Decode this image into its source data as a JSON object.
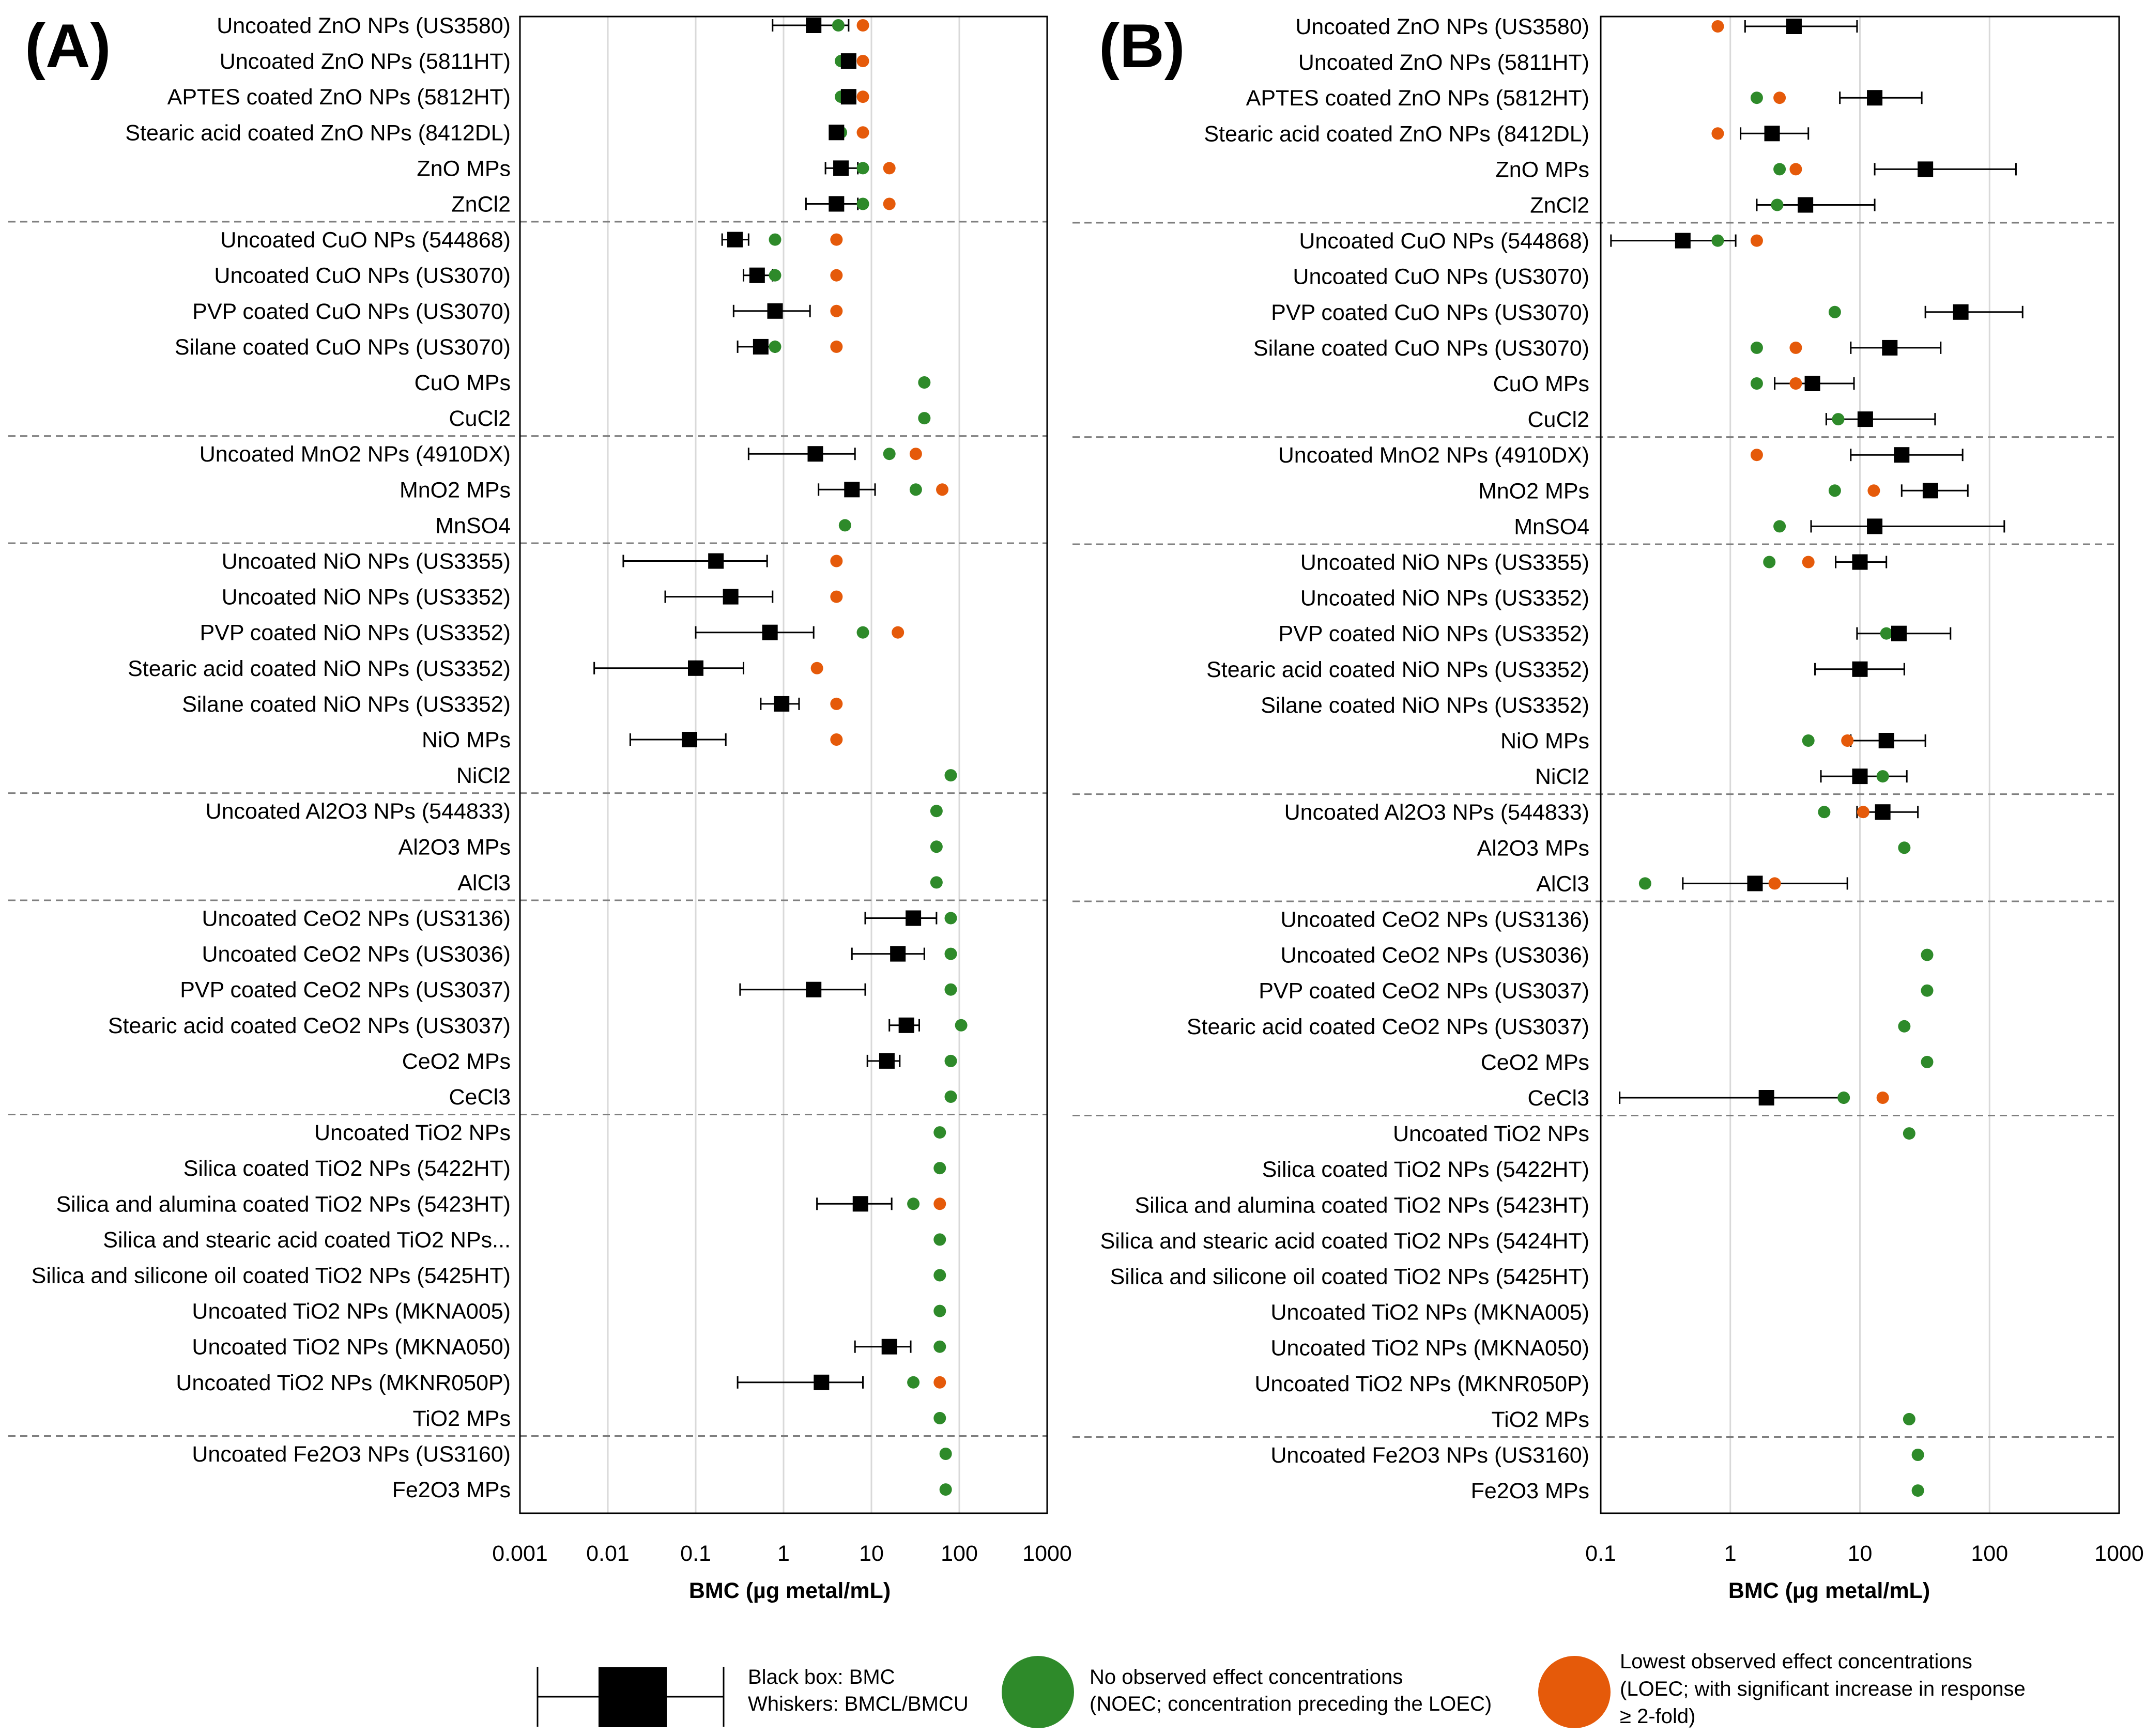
{
  "chart_data": [
    {
      "type": "scatter",
      "panel_label": "(A)",
      "xlabel": "BMC (µg metal/mL)",
      "xscale": "log",
      "xlim": [
        0.001,
        1000
      ],
      "xticks": [
        "0.001",
        "0.01",
        "0.1",
        "1",
        "10",
        "100",
        "1000"
      ],
      "rows": [
        {
          "label": "Uncoated ZnO NPs (US3580)",
          "bmc": 2.2,
          "bmcl": 0.75,
          "bmcu": 5.5,
          "noec": 4.2,
          "loec": 8
        },
        {
          "label": "Uncoated ZnO NPs (5811HT)",
          "bmc": 5.5,
          "noec": 4.5,
          "loec": 8
        },
        {
          "label": "APTES coated ZnO NPs (5812HT)",
          "bmc": 5.5,
          "noec": 4.5,
          "loec": 8
        },
        {
          "label": "Stearic acid coated ZnO NPs (8412DL)",
          "bmc": 4,
          "noec": 4.5,
          "loec": 8
        },
        {
          "label": "ZnO MPs",
          "bmc": 4.5,
          "bmcl": 3,
          "bmcu": 7,
          "noec": 8,
          "loec": 16
        },
        {
          "label": "ZnCl2",
          "bmc": 4,
          "bmcl": 1.8,
          "bmcu": 7,
          "noec": 8,
          "loec": 16
        },
        {
          "label": "Uncoated CuO NPs (544868)",
          "bmc": 0.28,
          "bmcl": 0.2,
          "bmcu": 0.4,
          "noec": 0.8,
          "loec": 4
        },
        {
          "label": "Uncoated CuO NPs (US3070)",
          "bmc": 0.5,
          "bmcl": 0.35,
          "bmcu": 0.75,
          "noec": 0.8,
          "loec": 4
        },
        {
          "label": "PVP coated CuO NPs (US3070)",
          "bmc": 0.8,
          "bmcl": 0.27,
          "bmcu": 2,
          "noec": 0.8,
          "loec": 4
        },
        {
          "label": "Silane coated CuO NPs (US3070)",
          "bmc": 0.55,
          "bmcl": 0.3,
          "bmcu": 0.8,
          "noec": 0.8,
          "loec": 4
        },
        {
          "label": "CuO MPs",
          "noec": 40
        },
        {
          "label": "CuCl2",
          "noec": 40
        },
        {
          "label": "Uncoated MnO2 NPs (4910DX)",
          "bmc": 2.3,
          "bmcl": 0.4,
          "bmcu": 6.5,
          "noec": 16,
          "loec": 32
        },
        {
          "label": "MnO2 MPs",
          "bmc": 6,
          "bmcl": 2.5,
          "bmcu": 11,
          "noec": 32,
          "loec": 64
        },
        {
          "label": "MnSO4",
          "noec": 5
        },
        {
          "label": "Uncoated NiO NPs (US3355)",
          "bmc": 0.17,
          "bmcl": 0.015,
          "bmcu": 0.65,
          "loec": 4
        },
        {
          "label": "Uncoated NiO NPs (US3352)",
          "bmc": 0.25,
          "bmcl": 0.045,
          "bmcu": 0.75,
          "loec": 4
        },
        {
          "label": "PVP coated NiO NPs (US3352)",
          "bmc": 0.7,
          "bmcl": 0.1,
          "bmcu": 2.2,
          "noec": 8,
          "loec": 20
        },
        {
          "label": "Stearic acid coated NiO NPs (US3352)",
          "bmc": 0.1,
          "bmcl": 0.007,
          "bmcu": 0.35,
          "loec": 2.4
        },
        {
          "label": "Silane coated NiO NPs (US3352)",
          "bmc": 0.95,
          "bmcl": 0.55,
          "bmcu": 1.5,
          "loec": 4
        },
        {
          "label": "NiO MPs",
          "bmc": 0.085,
          "bmcl": 0.018,
          "bmcu": 0.22,
          "loec": 4
        },
        {
          "label": "NiCl2",
          "noec": 80
        },
        {
          "label": "Uncoated Al2O3 NPs (544833)",
          "noec": 55
        },
        {
          "label": "Al2O3 MPs",
          "noec": 55
        },
        {
          "label": "AlCl3",
          "noec": 55
        },
        {
          "label": "Uncoated CeO2 NPs (US3136)",
          "bmc": 30,
          "bmcl": 8.5,
          "bmcu": 55,
          "noec": 80
        },
        {
          "label": "Uncoated CeO2 NPs (US3036)",
          "bmc": 20,
          "bmcl": 6,
          "bmcu": 40,
          "noec": 80
        },
        {
          "label": "PVP coated CeO2 NPs (US3037)",
          "bmc": 2.2,
          "bmcl": 0.32,
          "bmcu": 8.5,
          "noec": 80
        },
        {
          "label": "Stearic acid coated CeO2 NPs (US3037)",
          "bmc": 25,
          "bmcl": 16,
          "bmcu": 35,
          "noec": 105
        },
        {
          "label": "CeO2 MPs",
          "bmc": 15,
          "bmcl": 9,
          "bmcu": 21,
          "noec": 80
        },
        {
          "label": "CeCl3",
          "noec": 80
        },
        {
          "label": "Uncoated TiO2 NPs",
          "noec": 60
        },
        {
          "label": "Silica coated TiO2 NPs (5422HT)",
          "noec": 60
        },
        {
          "label": "Silica and alumina coated TiO2 NPs (5423HT)",
          "bmc": 7.5,
          "bmcl": 2.4,
          "bmcu": 17,
          "noec": 30,
          "loec": 60
        },
        {
          "label": "Silica and stearic acid coated TiO2 NPs...",
          "noec": 60
        },
        {
          "label": "Silica and silicone oil coated TiO2 NPs (5425HT)",
          "noec": 60
        },
        {
          "label": "Uncoated TiO2 NPs (MKNA005)",
          "noec": 60
        },
        {
          "label": "Uncoated TiO2 NPs (MKNA050)",
          "bmc": 16,
          "bmcl": 6.5,
          "bmcu": 28,
          "noec": 60
        },
        {
          "label": "Uncoated TiO2 NPs (MKNR050P)",
          "bmc": 2.7,
          "bmcl": 0.3,
          "bmcu": 8,
          "noec": 30,
          "loec": 60
        },
        {
          "label": "TiO2 MPs",
          "noec": 60
        },
        {
          "label": "Uncoated Fe2O3 NPs (US3160)",
          "noec": 70
        },
        {
          "label": "Fe2O3 MPs",
          "noec": 70
        }
      ],
      "group_breaks_after": [
        5,
        11,
        14,
        21,
        24,
        30,
        39
      ]
    },
    {
      "type": "scatter",
      "panel_label": "(B)",
      "xlabel": "BMC (µg metal/mL)",
      "xscale": "log",
      "xlim": [
        0.1,
        1000
      ],
      "xticks": [
        "0.1",
        "1",
        "10",
        "100",
        "1000"
      ],
      "rows": [
        {
          "label": "Uncoated ZnO NPs (US3580)",
          "bmc": 3.1,
          "bmcl": 1.3,
          "bmcu": 9.5,
          "loec": 0.8
        },
        {
          "label": "Uncoated ZnO NPs (5811HT)"
        },
        {
          "label": "APTES coated ZnO NPs (5812HT)",
          "bmc": 13,
          "bmcl": 7,
          "bmcu": 30,
          "noec": 1.6,
          "loec": 2.4
        },
        {
          "label": "Stearic acid coated ZnO NPs (8412DL)",
          "bmc": 2.1,
          "bmcl": 1.2,
          "bmcu": 4,
          "loec": 0.8
        },
        {
          "label": "ZnO MPs",
          "bmc": 32,
          "bmcl": 13,
          "bmcu": 160,
          "noec": 2.4,
          "loec": 3.2
        },
        {
          "label": "ZnCl2",
          "bmc": 3.8,
          "bmcl": 1.6,
          "bmcu": 13,
          "noec": 2.3
        },
        {
          "label": "Uncoated CuO NPs (544868)",
          "bmc": 0.43,
          "bmcl": 0.12,
          "bmcu": 1.1,
          "noec": 0.8,
          "loec": 1.6
        },
        {
          "label": "Uncoated CuO NPs (US3070)"
        },
        {
          "label": "PVP coated CuO NPs (US3070)",
          "bmc": 60,
          "bmcl": 32,
          "bmcu": 180,
          "noec": 6.4
        },
        {
          "label": "Silane coated CuO NPs (US3070)",
          "bmc": 17,
          "bmcl": 8.5,
          "bmcu": 42,
          "noec": 1.6,
          "loec": 3.2
        },
        {
          "label": "CuO MPs",
          "bmc": 4.3,
          "bmcl": 2.2,
          "bmcu": 9,
          "noec": 1.6,
          "loec": 3.2
        },
        {
          "label": "CuCl2",
          "bmc": 11,
          "bmcl": 5.5,
          "bmcu": 38,
          "noec": 6.8
        },
        {
          "label": "Uncoated MnO2 NPs (4910DX)",
          "bmc": 21,
          "bmcl": 8.5,
          "bmcu": 62,
          "loec": 1.6
        },
        {
          "label": "MnO2 MPs",
          "bmc": 35,
          "bmcl": 21,
          "bmcu": 68,
          "noec": 6.4,
          "loec": 12.8
        },
        {
          "label": "MnSO4",
          "bmc": 13,
          "bmcl": 4.2,
          "bmcu": 130,
          "noec": 2.4
        },
        {
          "label": "Uncoated NiO NPs (US3355)",
          "bmc": 10,
          "bmcl": 6.5,
          "bmcu": 16,
          "noec": 2,
          "loec": 4
        },
        {
          "label": "Uncoated NiO NPs (US3352)"
        },
        {
          "label": "PVP coated NiO NPs (US3352)",
          "bmc": 20,
          "bmcl": 9.5,
          "bmcu": 50,
          "noec": 16
        },
        {
          "label": "Stearic acid coated NiO NPs (US3352)",
          "bmc": 10,
          "bmcl": 4.5,
          "bmcu": 22,
          "noec": 10
        },
        {
          "label": "Silane coated NiO NPs (US3352)"
        },
        {
          "label": "NiO MPs",
          "bmc": 16,
          "bmcl": 8.5,
          "bmcu": 32,
          "noec": 4,
          "loec": 8
        },
        {
          "label": "NiCl2",
          "bmc": 10,
          "bmcl": 5,
          "bmcu": 23,
          "noec": 15
        },
        {
          "label": "Uncoated Al2O3 NPs (544833)",
          "bmc": 15,
          "bmcl": 9.5,
          "bmcu": 28,
          "noec": 5.3,
          "loec": 10.6
        },
        {
          "label": "Al2O3 MPs",
          "noec": 22
        },
        {
          "label": "AlCl3",
          "bmc": 1.55,
          "bmcl": 0.43,
          "bmcu": 8,
          "noec": 0.22,
          "loec": 2.2
        },
        {
          "label": "Uncoated CeO2 NPs (US3136)"
        },
        {
          "label": "Uncoated CeO2 NPs (US3036)",
          "noec": 33
        },
        {
          "label": "PVP coated CeO2 NPs (US3037)",
          "noec": 33
        },
        {
          "label": "Stearic acid coated CeO2 NPs (US3037)",
          "noec": 22
        },
        {
          "label": "CeO2 MPs",
          "noec": 33
        },
        {
          "label": "CeCl3",
          "bmc": 1.9,
          "bmcl": 0.14,
          "bmcu": 7.5,
          "noec": 7.5,
          "loec": 15
        },
        {
          "label": "Uncoated TiO2 NPs",
          "noec": 24
        },
        {
          "label": "Silica coated TiO2 NPs (5422HT)"
        },
        {
          "label": "Silica and alumina coated TiO2 NPs (5423HT)"
        },
        {
          "label": "Silica and stearic acid coated TiO2 NPs (5424HT)"
        },
        {
          "label": "Silica and silicone oil coated TiO2 NPs (5425HT)"
        },
        {
          "label": "Uncoated TiO2 NPs (MKNA005)"
        },
        {
          "label": "Uncoated TiO2 NPs (MKNA050)"
        },
        {
          "label": "Uncoated TiO2 NPs (MKNR050P)"
        },
        {
          "label": "TiO2 MPs",
          "noec": 24
        },
        {
          "label": "Uncoated Fe2O3 NPs (US3160)",
          "noec": 28
        },
        {
          "label": "Fe2O3 MPs",
          "noec": 28
        }
      ],
      "group_breaks_after": [
        5,
        11,
        14,
        21,
        24,
        30,
        39
      ]
    }
  ],
  "colors": {
    "bmc": "#000000",
    "noec": "#2e8a2a",
    "loec": "#e55a0a",
    "grid": "#d9d9d9",
    "separator": "#7f7f7f"
  },
  "legend": {
    "bmc_line1": "Black box: BMC",
    "bmc_line2": "Whiskers: BMCL/BMCU",
    "noec_line1": "No observed effect concentrations",
    "noec_line2": "(NOEC; concentration preceding the LOEC)",
    "loec_line1": "Lowest observed effect concentrations",
    "loec_line2": "(LOEC; with significant increase in response",
    "loec_line3": "≥ 2-fold)"
  }
}
